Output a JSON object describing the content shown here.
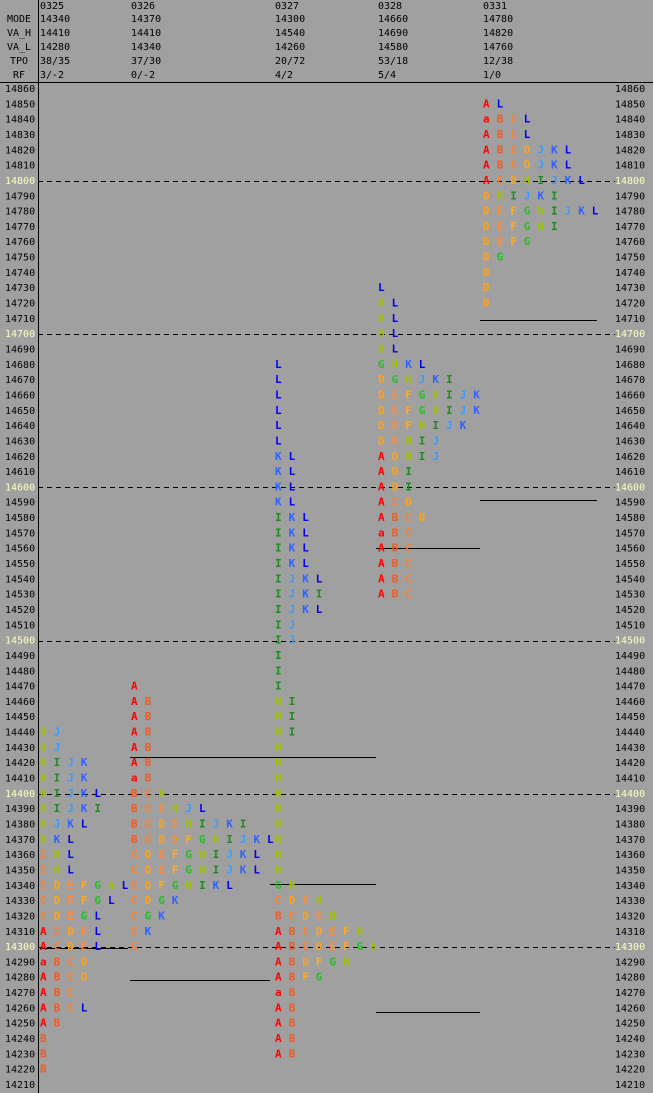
{
  "header": {
    "labels": [
      "MODE",
      "VA_H",
      "VA_L",
      "TPO",
      "RF"
    ]
  },
  "days": [
    {
      "date": "0325",
      "mode": 14340,
      "va_h": 14410,
      "va_l": 14280,
      "tpo": "38/35",
      "rf": "3/-2",
      "rows": [
        {
          "price": 14440,
          "tpo": "HJ"
        },
        {
          "price": 14430,
          "tpo": "HJ"
        },
        {
          "price": 14420,
          "tpo": "HIJK"
        },
        {
          "price": 14410,
          "tpo": "HIJK"
        },
        {
          "price": 14400,
          "tpo": "HIJKL"
        },
        {
          "price": 14390,
          "tpo": "HIJKI"
        },
        {
          "price": 14380,
          "tpo": "HJKL"
        },
        {
          "price": 14370,
          "tpo": "HKL"
        },
        {
          "price": 14360,
          "tpo": "CHL"
        },
        {
          "price": 14350,
          "tpo": "CHL"
        },
        {
          "price": 14340,
          "tpo": "CDEFGhL"
        },
        {
          "price": 14330,
          "tpo": "CDEFGL"
        },
        {
          "price": 14320,
          "tpo": "CDEGL"
        },
        {
          "price": 14310,
          "tpo": "ACDEL"
        },
        {
          "price": 14300,
          "tpo": "ACDEL"
        },
        {
          "price": 14290,
          "tpo": "aBCD"
        },
        {
          "price": 14280,
          "tpo": "ABCD"
        },
        {
          "price": 14270,
          "tpo": "ABC"
        },
        {
          "price": 14260,
          "tpo": "ABCL"
        },
        {
          "price": 14250,
          "tpo": "AB"
        },
        {
          "price": 14240,
          "tpo": "B"
        },
        {
          "price": 14230,
          "tpo": "B"
        },
        {
          "price": 14220,
          "tpo": "B"
        }
      ]
    },
    {
      "date": "0326",
      "mode": 14370,
      "va_h": 14410,
      "va_l": 14340,
      "tpo": "37/30",
      "rf": "0/-2",
      "rows": [
        {
          "price": 14470,
          "tpo": "A"
        },
        {
          "price": 14460,
          "tpo": "AB"
        },
        {
          "price": 14450,
          "tpo": "AB"
        },
        {
          "price": 14440,
          "tpo": "AB"
        },
        {
          "price": 14430,
          "tpo": "AB"
        },
        {
          "price": 14420,
          "tpo": "AB"
        },
        {
          "price": 14410,
          "tpo": "aB"
        },
        {
          "price": 14400,
          "tpo": "BCH"
        },
        {
          "price": 14390,
          "tpo": "BCEHJL"
        },
        {
          "price": 14380,
          "tpo": "BCDEHIJKI"
        },
        {
          "price": 14370,
          "tpo": "BCDEFGHIJKL"
        },
        {
          "price": 14360,
          "tpo": "CDEFGHIJKL"
        },
        {
          "price": 14350,
          "tpo": "CDEFGHIJKL"
        },
        {
          "price": 14340,
          "tpo": "CDFGHIKL"
        },
        {
          "price": 14330,
          "tpo": "CDGK"
        },
        {
          "price": 14320,
          "tpo": "CGK"
        },
        {
          "price": 14310,
          "tpo": "CK"
        },
        {
          "price": 14300,
          "tpo": "C"
        }
      ]
    },
    {
      "date": "0327",
      "mode": 14300,
      "va_h": 14540,
      "va_l": 14260,
      "tpo": "20/72",
      "rf": "4/2",
      "rows": [
        {
          "price": 14680,
          "tpo": "L"
        },
        {
          "price": 14670,
          "tpo": "L"
        },
        {
          "price": 14660,
          "tpo": "L"
        },
        {
          "price": 14650,
          "tpo": "L"
        },
        {
          "price": 14640,
          "tpo": "L"
        },
        {
          "price": 14630,
          "tpo": "L"
        },
        {
          "price": 14620,
          "tpo": "KL"
        },
        {
          "price": 14610,
          "tpo": "KL"
        },
        {
          "price": 14600,
          "tpo": "KL"
        },
        {
          "price": 14590,
          "tpo": "KL"
        },
        {
          "price": 14580,
          "tpo": "IKL"
        },
        {
          "price": 14570,
          "tpo": "IKL"
        },
        {
          "price": 14560,
          "tpo": "IKL"
        },
        {
          "price": 14550,
          "tpo": "IKL"
        },
        {
          "price": 14540,
          "tpo": "IJKL"
        },
        {
          "price": 14530,
          "tpo": "IJKI"
        },
        {
          "price": 14520,
          "tpo": "IJKL"
        },
        {
          "price": 14510,
          "tpo": "IJ"
        },
        {
          "price": 14500,
          "tpo": "IJ"
        },
        {
          "price": 14490,
          "tpo": "I"
        },
        {
          "price": 14480,
          "tpo": "I"
        },
        {
          "price": 14470,
          "tpo": "I"
        },
        {
          "price": 14460,
          "tpo": "HI"
        },
        {
          "price": 14450,
          "tpo": "HI"
        },
        {
          "price": 14440,
          "tpo": "HI"
        },
        {
          "price": 14430,
          "tpo": "H"
        },
        {
          "price": 14420,
          "tpo": "H"
        },
        {
          "price": 14410,
          "tpo": "H"
        },
        {
          "price": 14400,
          "tpo": "H"
        },
        {
          "price": 14390,
          "tpo": "H"
        },
        {
          "price": 14380,
          "tpo": "H"
        },
        {
          "price": 14370,
          "tpo": "H"
        },
        {
          "price": 14360,
          "tpo": "H"
        },
        {
          "price": 14350,
          "tpo": "H"
        },
        {
          "price": 14340,
          "tpo": "GH"
        },
        {
          "price": 14330,
          "tpo": "CDEH"
        },
        {
          "price": 14320,
          "tpo": "BCDEH"
        },
        {
          "price": 14310,
          "tpo": "ABCDEFH"
        },
        {
          "price": 14300,
          "tpo": "ABCDEFGh"
        },
        {
          "price": 14290,
          "tpo": "ABDFGH"
        },
        {
          "price": 14280,
          "tpo": "ABFG"
        },
        {
          "price": 14270,
          "tpo": "aB"
        },
        {
          "price": 14260,
          "tpo": "AB"
        },
        {
          "price": 14250,
          "tpo": "AB"
        },
        {
          "price": 14240,
          "tpo": "AB"
        },
        {
          "price": 14230,
          "tpo": "AB"
        }
      ]
    },
    {
      "date": "0328",
      "mode": 14660,
      "va_h": 14690,
      "va_l": 14580,
      "tpo": "53/18",
      "rf": "5/4",
      "rows": [
        {
          "price": 14730,
          "tpo": "L"
        },
        {
          "price": 14720,
          "tpo": "HL"
        },
        {
          "price": 14710,
          "tpo": "HL"
        },
        {
          "price": 14700,
          "tpo": "HL"
        },
        {
          "price": 14690,
          "tpo": "HL"
        },
        {
          "price": 14680,
          "tpo": "GHKL"
        },
        {
          "price": 14670,
          "tpo": "DGhJKI"
        },
        {
          "price": 14660,
          "tpo": "DEFGhIJK"
        },
        {
          "price": 14650,
          "tpo": "DEFGHIJK"
        },
        {
          "price": 14640,
          "tpo": "DEFHIJK"
        },
        {
          "price": 14630,
          "tpo": "DEHIJ"
        },
        {
          "price": 14620,
          "tpo": "ADHIJ"
        },
        {
          "price": 14610,
          "tpo": "ADI"
        },
        {
          "price": 14600,
          "tpo": "ADI"
        },
        {
          "price": 14590,
          "tpo": "ACD"
        },
        {
          "price": 14580,
          "tpo": "ABCD"
        },
        {
          "price": 14570,
          "tpo": "aBC"
        },
        {
          "price": 14560,
          "tpo": "ABC"
        },
        {
          "price": 14550,
          "tpo": "ABC"
        },
        {
          "price": 14540,
          "tpo": "ABC"
        },
        {
          "price": 14530,
          "tpo": "ABC"
        }
      ]
    },
    {
      "date": "0331",
      "mode": 14780,
      "va_h": 14820,
      "va_l": 14760,
      "tpo": "12/38",
      "rf": "1/0",
      "rows": [
        {
          "price": 14850,
          "tpo": "AL"
        },
        {
          "price": 14840,
          "tpo": "aBCL"
        },
        {
          "price": 14830,
          "tpo": "ABCL"
        },
        {
          "price": 14820,
          "tpo": "ABCDJKL"
        },
        {
          "price": 14810,
          "tpo": "ABCDJKL"
        },
        {
          "price": 14800,
          "tpo": "ACDHIJKL"
        },
        {
          "price": 14790,
          "tpo": "DHIJKI"
        },
        {
          "price": 14780,
          "tpo": "DEFGhIJKL"
        },
        {
          "price": 14770,
          "tpo": "DEFGHI"
        },
        {
          "price": 14760,
          "tpo": "DEFG"
        },
        {
          "price": 14750,
          "tpo": "DG"
        },
        {
          "price": 14740,
          "tpo": "D"
        },
        {
          "price": 14730,
          "tpo": "D"
        },
        {
          "price": 14720,
          "tpo": "D"
        }
      ]
    }
  ],
  "price_levels": [
    14860,
    14850,
    14840,
    14830,
    14820,
    14810,
    14800,
    14790,
    14780,
    14770,
    14760,
    14750,
    14740,
    14730,
    14720,
    14710,
    14700,
    14690,
    14680,
    14670,
    14660,
    14650,
    14640,
    14630,
    14620,
    14610,
    14600,
    14590,
    14580,
    14570,
    14560,
    14550,
    14540,
    14530,
    14520,
    14510,
    14500,
    14490,
    14480,
    14470,
    14460,
    14450,
    14440,
    14430,
    14420,
    14410,
    14400,
    14390,
    14380,
    14370,
    14360,
    14350,
    14340,
    14330,
    14320,
    14310,
    14300,
    14290,
    14280,
    14270,
    14260,
    14250,
    14240,
    14230,
    14220,
    14210
  ],
  "dashed_levels": [
    14800,
    14700,
    14600,
    14500,
    14400,
    14300
  ],
  "letter_colors": {
    "A": "#ff0000",
    "a": "#ff0000",
    "B": "#f25a22",
    "C": "#ff7f27",
    "D": "#ffa31a",
    "E": "#ff8c3a",
    "F": "#ffaa22",
    "G": "#22c022",
    "H": "#9cc400",
    "h": "#9cc400",
    "I": "#1f8a1f",
    "J": "#3b9cff",
    "K": "#3060ff",
    "L": "#0000ee"
  }
}
